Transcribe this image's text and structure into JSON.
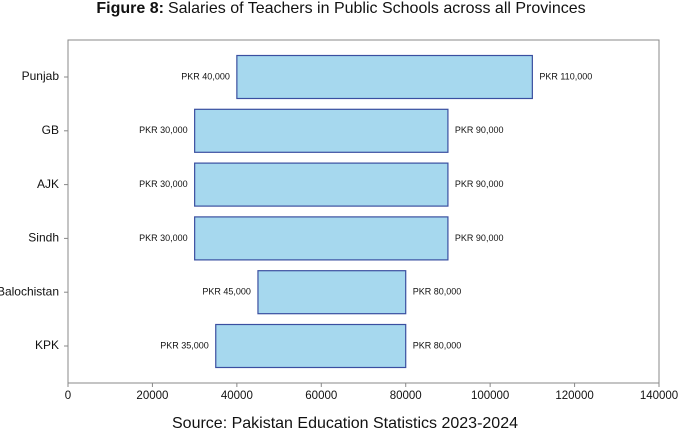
{
  "chart_data": {
    "type": "range_bar",
    "figure_label": "Figure 8:",
    "title": "Salaries of Teachers in Public Schools across all Provinces",
    "source": "Source: Pakistan Education Statistics 2023-2024",
    "categories": [
      "Punjab",
      "GB",
      "AJK",
      "Sindh",
      "Balochistan",
      "KPK"
    ],
    "low": {
      "values": [
        40000,
        30000,
        30000,
        30000,
        45000,
        35000
      ],
      "value_labels": [
        "PKR 40,000",
        "PKR 30,000",
        "PKR 30,000",
        "PKR 30,000",
        "PKR 45,000",
        "PKR 35,000"
      ]
    },
    "high": {
      "values": [
        110000,
        90000,
        90000,
        90000,
        80000,
        80000
      ],
      "value_labels": [
        "PKR 110,000",
        "PKR 90,000",
        "PKR 90,000",
        "PKR 90,000",
        "PKR 80,000",
        "PKR 80,000"
      ]
    },
    "color": "#a6d8ee",
    "edge_color": "#3a4fa0",
    "xlim": [
      0,
      140000
    ],
    "xticks": [
      0,
      20000,
      40000,
      60000,
      80000,
      100000,
      120000,
      140000
    ]
  }
}
